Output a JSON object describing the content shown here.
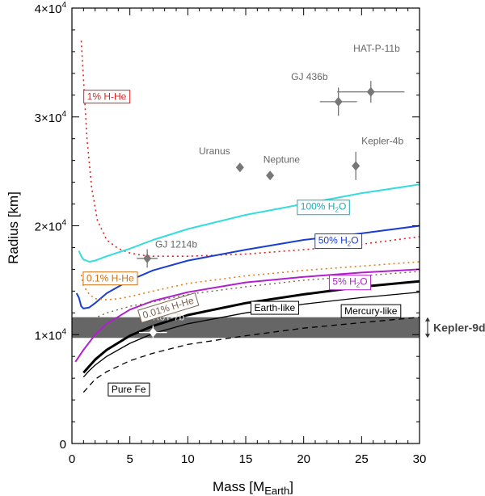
{
  "chart_data": {
    "type": "line",
    "xlabel": "Mass [M",
    "xlabel_sub": "Earth",
    "xlabel_close": "]",
    "ylabel": "Radius [km]",
    "xlim": [
      0,
      30
    ],
    "ylim": [
      0,
      40000
    ],
    "x_ticks": [
      0,
      5,
      10,
      15,
      20,
      25,
      30
    ],
    "x_tick_labels": [
      "0",
      "5",
      "10",
      "15",
      "20",
      "25",
      "30"
    ],
    "y_ticks": [
      {
        "value": 0,
        "base": "0",
        "exp": ""
      },
      {
        "value": 10000,
        "base": "1×10",
        "exp": "4"
      },
      {
        "value": 20000,
        "base": "2×10",
        "exp": "4"
      },
      {
        "value": 30000,
        "base": "3×10",
        "exp": "4"
      },
      {
        "value": 40000,
        "base": "4×10",
        "exp": "4"
      }
    ],
    "band": {
      "label": "Kepler-9d",
      "y_min": 9700,
      "y_max": 11600,
      "color": "#666666"
    },
    "series": [
      {
        "name": "1% H-He",
        "color": "#e02020",
        "dash": "dot",
        "width": 1.6,
        "x": [
          0.8,
          1,
          1.3,
          1.7,
          2.2,
          3,
          4,
          5,
          6,
          7,
          8,
          10,
          15,
          20,
          25,
          30
        ],
        "y": [
          37000,
          33500,
          28000,
          23500,
          20500,
          18700,
          17900,
          17500,
          17300,
          17200,
          17200,
          17200,
          17400,
          17800,
          18300,
          19000
        ]
      },
      {
        "name": "100% H2O",
        "color": "#33dddd",
        "dash": "solid",
        "width": 2,
        "x": [
          0.6,
          0.8,
          1,
          1.5,
          2,
          3,
          5,
          7,
          10,
          15,
          20,
          25,
          30
        ],
        "y": [
          17700,
          17200,
          16900,
          16700,
          16800,
          17200,
          17900,
          18700,
          19700,
          21000,
          22000,
          23000,
          23800
        ]
      },
      {
        "name": "50% H2O",
        "color": "#1a3fd0",
        "dash": "solid",
        "width": 2,
        "x": [
          0.4,
          0.6,
          0.8,
          1,
          1.5,
          2,
          3,
          5,
          7,
          10,
          15,
          20,
          25,
          30
        ],
        "y": [
          13800,
          13400,
          12600,
          12400,
          12500,
          12900,
          13800,
          15000,
          15900,
          16800,
          17800,
          18700,
          19300,
          20000
        ]
      },
      {
        "name": "0.1% H-He",
        "color": "#e0801a",
        "dash": "dot",
        "width": 1.6,
        "x": [
          0.8,
          1,
          1.5,
          2,
          3,
          4,
          5,
          7,
          10,
          15,
          20,
          25,
          30
        ],
        "y": [
          15500,
          14500,
          13700,
          13300,
          13200,
          13300,
          13500,
          14000,
          14700,
          15400,
          15900,
          16300,
          16700
        ]
      },
      {
        "name": "5% H2O",
        "color": "#b020cc",
        "dash": "solid",
        "width": 2,
        "x": [
          0.3,
          1,
          2,
          3,
          5,
          7,
          10,
          15,
          20,
          25,
          30
        ],
        "y": [
          7500,
          8600,
          10000,
          11000,
          12300,
          13100,
          13900,
          14800,
          15300,
          15700,
          16000
        ]
      },
      {
        "name": "0.01% H-He",
        "color": "#7a6250",
        "dash": "dot",
        "width": 1.4,
        "x": [
          0.8,
          1.5,
          3,
          5,
          7,
          10,
          15,
          20,
          25,
          30
        ],
        "y": [
          10800,
          11300,
          12000,
          12600,
          13000,
          13700,
          14400,
          15000,
          15400,
          15800
        ]
      },
      {
        "name": "Earth-like",
        "color": "#000000",
        "dash": "solid",
        "width": 3,
        "x": [
          1,
          1.5,
          2,
          3,
          5,
          7,
          10,
          15,
          20,
          25,
          30
        ],
        "y": [
          6500,
          7100,
          7700,
          8600,
          9900,
          10800,
          11800,
          12900,
          13700,
          14400,
          14900
        ]
      },
      {
        "name": "Mercury-like",
        "color": "#000000",
        "dash": "solid",
        "width": 1.3,
        "x": [
          1,
          1.5,
          2,
          3,
          5,
          7,
          10,
          15,
          20,
          25,
          30
        ],
        "y": [
          6100,
          6700,
          7200,
          8000,
          9200,
          10100,
          11000,
          12000,
          12800,
          13400,
          13900
        ]
      },
      {
        "name": "Pure Fe",
        "color": "#000000",
        "dash": "dash",
        "width": 1.3,
        "x": [
          1,
          1.5,
          2,
          3,
          5,
          7,
          10,
          15,
          20,
          25,
          30
        ],
        "y": [
          4700,
          5300,
          5900,
          6600,
          7600,
          8300,
          9100,
          9900,
          10600,
          11100,
          11600
        ]
      }
    ],
    "series_labels": [
      {
        "series": "1% H-He",
        "text": "1% H-He",
        "sub": "",
        "after": "",
        "x": 3.0,
        "y": 31900,
        "color": "#e02020"
      },
      {
        "series": "100% H2O",
        "text": "100% H",
        "sub": "2",
        "after": "O",
        "x": 21.7,
        "y": 21800,
        "color": "#1fa8b8"
      },
      {
        "series": "50% H2O",
        "text": "50% H",
        "sub": "2",
        "after": "O",
        "x": 23.0,
        "y": 18700,
        "color": "#1a3fd0"
      },
      {
        "series": "0.1% H-He",
        "text": "0.1% H-He",
        "sub": "",
        "after": "",
        "x": 3.3,
        "y": 15200,
        "color": "#d07010"
      },
      {
        "series": "5% H2O",
        "text": "5% H",
        "sub": "2",
        "after": "O",
        "x": 24.0,
        "y": 14900,
        "color": "#b020cc"
      },
      {
        "series": "0.01% H-He",
        "text": "0.01% H-He",
        "sub": "",
        "after": "",
        "x": 8.3,
        "y": 12500,
        "color": "#7a6250",
        "angle": -17
      },
      {
        "series": "Earth-like",
        "text": "Earth-like",
        "sub": "",
        "after": "",
        "x": 17.5,
        "y": 12500,
        "color": "#000000"
      },
      {
        "series": "Mercury-like",
        "text": "Mercury-like",
        "sub": "",
        "after": "",
        "x": 25.8,
        "y": 12200,
        "color": "#000000"
      },
      {
        "series": "Pure Fe",
        "text": "Pure Fe",
        "sub": "",
        "after": "",
        "x": 4.9,
        "y": 5000,
        "color": "#000000"
      }
    ],
    "planets": [
      {
        "name": "Uranus",
        "mass": 14.5,
        "radius": 25360,
        "label_dx": -2.2,
        "label_dy": 1200
      },
      {
        "name": "Neptune",
        "mass": 17.1,
        "radius": 24620,
        "label_dx": 1.0,
        "label_dy": 1150
      },
      {
        "name": "Kepler-4b",
        "mass": 24.5,
        "radius": 25500,
        "err_x": 0,
        "err_y": 1300,
        "label_dx": 2.3,
        "label_dy": 2000
      },
      {
        "name": "GJ 436b",
        "mass": 23.0,
        "radius": 31400,
        "err_x": 1.6,
        "err_y": 1300,
        "label_dx": -2.5,
        "label_dy": 2000
      },
      {
        "name": "HAT-P-11b",
        "mass": 25.8,
        "radius": 32300,
        "err_x": 2.9,
        "err_y": 1000,
        "label_dx": 0.5,
        "label_dy": 3700
      },
      {
        "name": "GJ 1214b",
        "mass": 6.5,
        "radius": 17000,
        "err_x": 0.9,
        "err_y": 850,
        "label_dx": 2.5,
        "label_dy": 1000
      },
      {
        "name": "CoRoT-7b",
        "mass": 7.0,
        "radius": 10200,
        "err_x": 1.2,
        "err_y": 650,
        "label_dx": 0.8,
        "label_dy": 1100,
        "color": "#ffffff"
      }
    ]
  }
}
